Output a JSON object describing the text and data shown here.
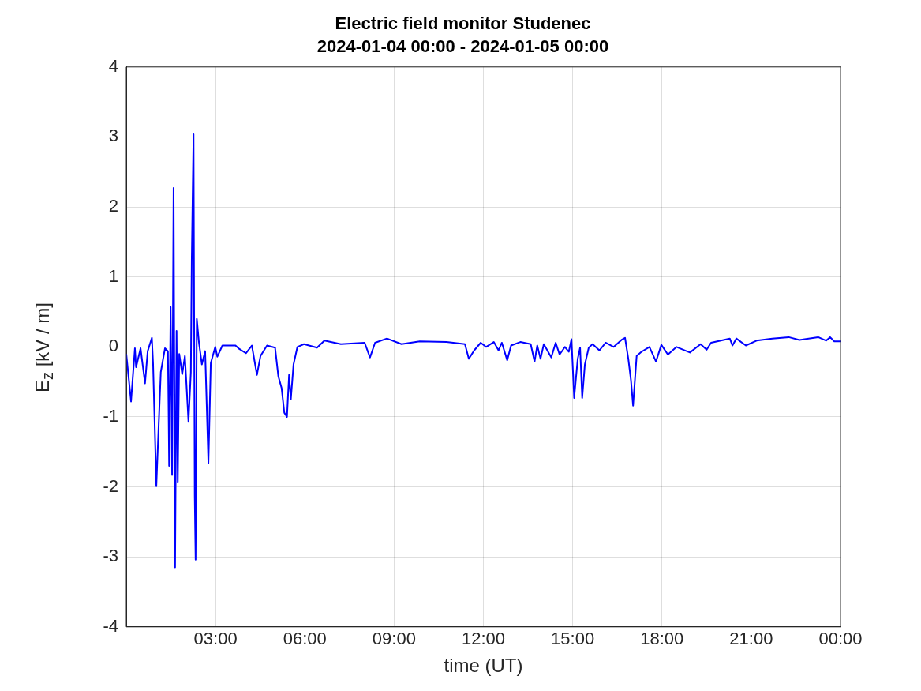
{
  "chart_data": {
    "type": "line",
    "title": "Electric field monitor Studenec",
    "subtitle": "2024-01-04 00:00 - 2024-01-05 00:00",
    "xlabel": "time (UT)",
    "ylabel": "E$_{z}$ [kV / m]",
    "xlim": [
      0,
      24
    ],
    "xticks": [
      {
        "value": 3,
        "label": "03:00"
      },
      {
        "value": 6,
        "label": "06:00"
      },
      {
        "value": 9,
        "label": "09:00"
      },
      {
        "value": 12,
        "label": "12:00"
      },
      {
        "value": 15,
        "label": "15:00"
      },
      {
        "value": 18,
        "label": "18:00"
      },
      {
        "value": 21,
        "label": "21:00"
      },
      {
        "value": 24,
        "label": "00:00"
      }
    ],
    "ylim": [
      -4,
      4
    ],
    "yticks": [
      -4,
      -3,
      -2,
      -1,
      0,
      1,
      2,
      3,
      4
    ],
    "grid": true,
    "legend": false,
    "marker": "none",
    "line_style": "solid",
    "series": [
      {
        "color": "#0000ff",
        "x": [
          0,
          0.16,
          0.29,
          0.33,
          0.48,
          0.63,
          0.72,
          0.86,
          0.9,
          1.01,
          1.09,
          1.16,
          1.3,
          1.4,
          1.44,
          1.49,
          1.54,
          1.59,
          1.64,
          1.69,
          1.73,
          1.78,
          1.88,
          1.97,
          2.09,
          2.17,
          2.2,
          2.26,
          2.3,
          2.33,
          2.37,
          2.44,
          2.54,
          2.65,
          2.76,
          2.84,
          2.99,
          3.06,
          3.23,
          3.67,
          3.8,
          4.02,
          4.22,
          4.39,
          4.51,
          4.73,
          5.0,
          5.11,
          5.22,
          5.31,
          5.4,
          5.47,
          5.53,
          5.62,
          5.75,
          5.97,
          6.41,
          6.66,
          7.21,
          8.01,
          8.19,
          8.36,
          8.76,
          9.25,
          9.86,
          10.76,
          11.38,
          11.51,
          11.69,
          11.91,
          12.09,
          12.35,
          12.51,
          12.62,
          12.8,
          12.93,
          13.24,
          13.59,
          13.72,
          13.81,
          13.92,
          14.03,
          14.28,
          14.43,
          14.56,
          14.74,
          14.87,
          14.96,
          15.05,
          15.17,
          15.25,
          15.32,
          15.41,
          15.54,
          15.67,
          15.9,
          16.11,
          16.38,
          16.64,
          16.76,
          16.87,
          16.96,
          17.03,
          17.15,
          17.31,
          17.58,
          17.8,
          17.98,
          18.2,
          18.49,
          18.94,
          19.3,
          19.5,
          19.65,
          20.28,
          20.37,
          20.5,
          20.82,
          21.18,
          21.71,
          22.26,
          22.62,
          23.25,
          23.52,
          23.65,
          23.79,
          24
        ],
        "values": [
          -0.1,
          -0.78,
          -0.02,
          -0.29,
          -0.02,
          -0.52,
          -0.06,
          0.13,
          -0.23,
          -1.99,
          -1.11,
          -0.36,
          -0.02,
          -0.06,
          -1.7,
          0.57,
          -1.83,
          2.27,
          -3.15,
          0.23,
          -1.93,
          -0.1,
          -0.39,
          -0.13,
          -1.07,
          -0.36,
          1.24,
          3.04,
          -2.12,
          -3.04,
          0.4,
          0.07,
          -0.25,
          -0.06,
          -1.66,
          -0.23,
          0,
          -0.14,
          0.02,
          0.02,
          -0.03,
          -0.09,
          0.02,
          -0.4,
          -0.13,
          0.02,
          -0.01,
          -0.42,
          -0.59,
          -0.94,
          -1.0,
          -0.4,
          -0.75,
          -0.25,
          0,
          0.04,
          -0.01,
          0.09,
          0.04,
          0.06,
          -0.15,
          0.06,
          0.12,
          0.04,
          0.08,
          0.07,
          0.04,
          -0.17,
          -0.05,
          0.06,
          0,
          0.07,
          -0.05,
          0.06,
          -0.19,
          0.02,
          0.07,
          0.04,
          -0.21,
          0.02,
          -0.17,
          0.04,
          -0.15,
          0.06,
          -0.11,
          0,
          -0.07,
          0.11,
          -0.73,
          -0.17,
          -0.01,
          -0.73,
          -0.25,
          -0.01,
          0.04,
          -0.05,
          0.06,
          0,
          0.1,
          0.13,
          -0.17,
          -0.48,
          -0.84,
          -0.13,
          -0.07,
          0,
          -0.21,
          0.03,
          -0.11,
          0,
          -0.08,
          0.04,
          -0.04,
          0.06,
          0.12,
          0.02,
          0.12,
          0.02,
          0.09,
          0.12,
          0.14,
          0.1,
          0.14,
          0.09,
          0.14,
          0.08,
          0.08
        ]
      }
    ]
  }
}
